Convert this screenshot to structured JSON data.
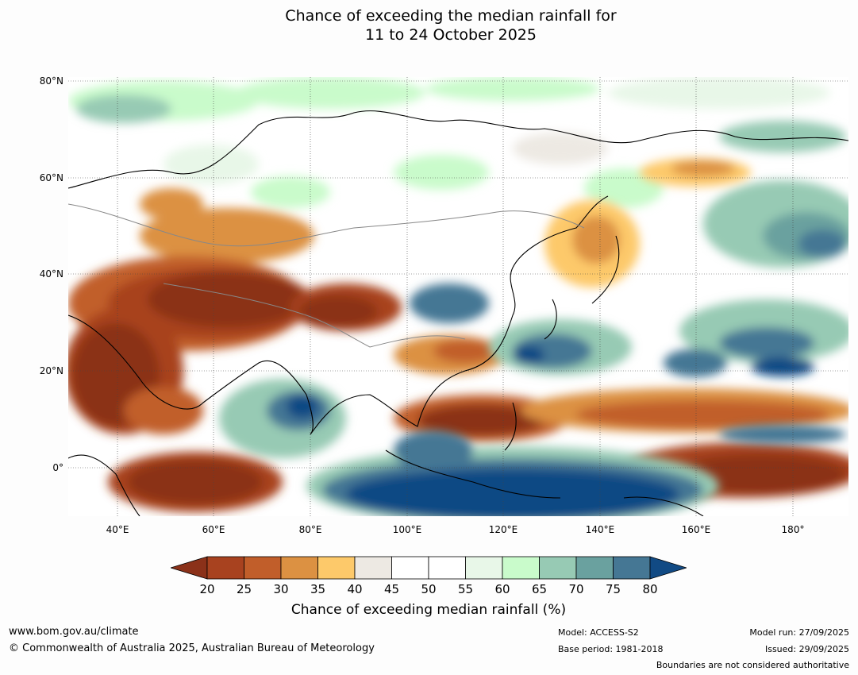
{
  "title": {
    "line1": "Chance of exceeding the median rainfall for",
    "line2": "11 to 24 October 2025"
  },
  "map": {
    "lat_labels": [
      "80°N",
      "60°N",
      "40°N",
      "20°N",
      "0°"
    ],
    "lon_labels": [
      "40°E",
      "60°E",
      "80°E",
      "100°E",
      "120°E",
      "140°E",
      "160°E",
      "180°"
    ]
  },
  "colorbar": {
    "ticks": [
      "20",
      "25",
      "30",
      "35",
      "40",
      "45",
      "50",
      "55",
      "60",
      "65",
      "70",
      "75",
      "80"
    ],
    "colors": {
      "below20": "#8b3119",
      "c20_25": "#a8421f",
      "c25_30": "#c15e2a",
      "c30_35": "#dc9142",
      "c35_40": "#fdc96a",
      "c40_45": "#ede9e3",
      "c45_50": "#ffffff",
      "c50_55": "#ffffff",
      "c55_60": "#e8f7e8",
      "c60_65": "#c9fbcb",
      "c65_70": "#97cab4",
      "c70_75": "#6aa19f",
      "c75_80": "#457794",
      "above80": "#114a84"
    },
    "title": "Chance of exceeding median rainfall (%)"
  },
  "footer": {
    "website": "www.bom.gov.au/climate",
    "copyright": "© Commonwealth of Australia 2025, Australian Bureau of Meteorology",
    "model": "Model: ACCESS-S2",
    "base_period": "Base period: 1981-2018",
    "model_run": "Model run: 27/09/2025",
    "issued": "Issued: 29/09/2025",
    "disclaimer": "Boundaries are not considered authoritative"
  }
}
